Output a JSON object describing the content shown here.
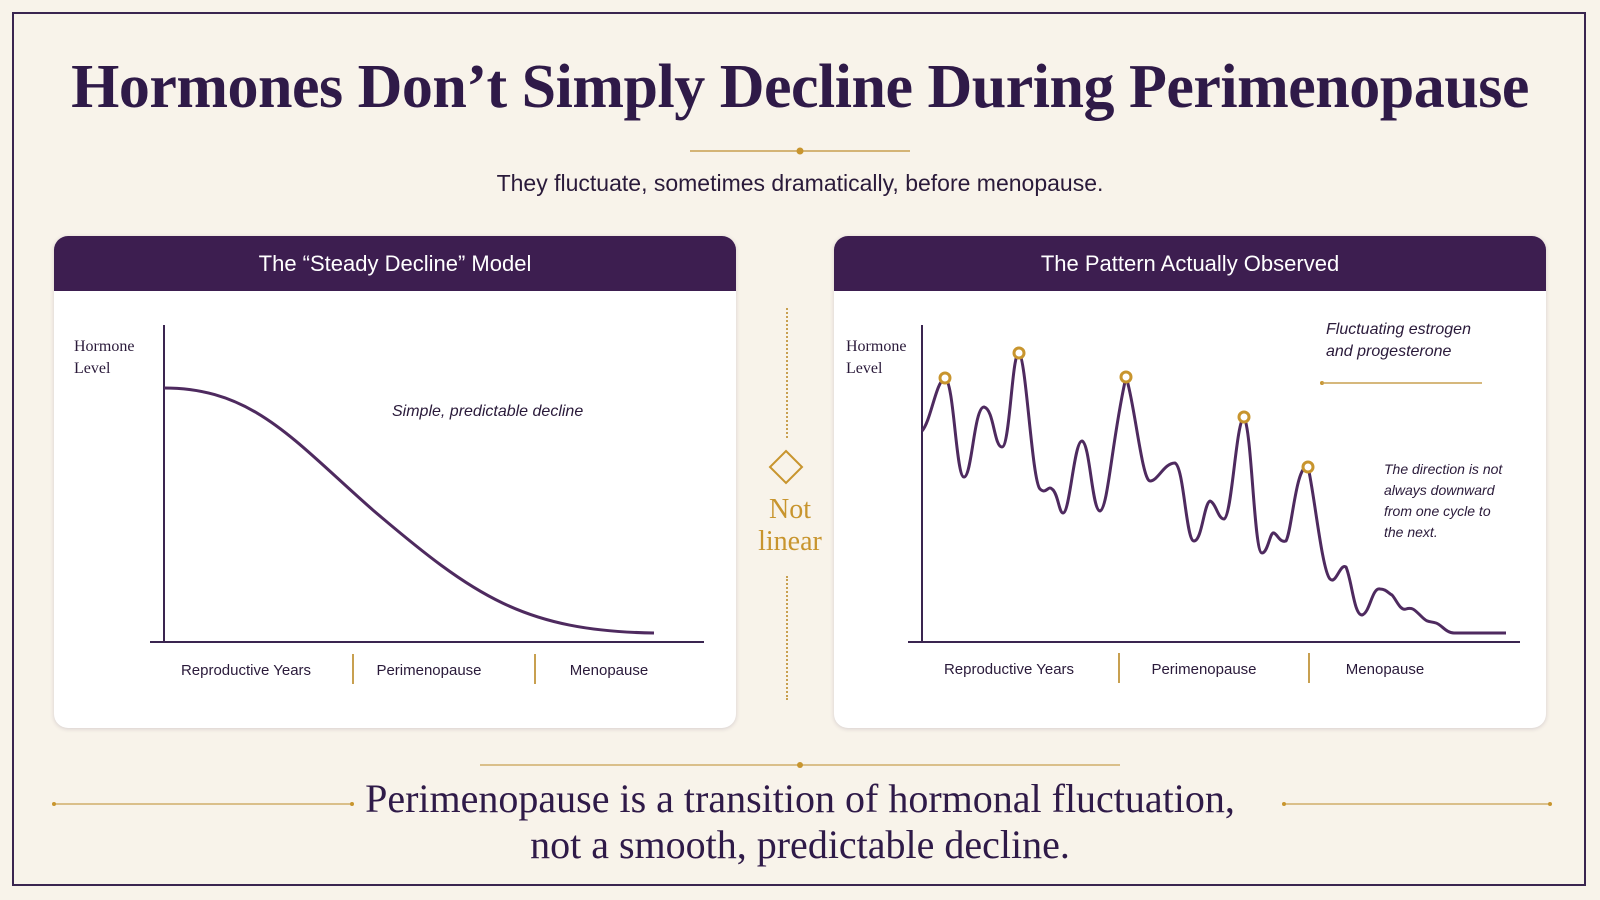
{
  "title": "Hormones Don’t Simply Decline During Perimenopause",
  "subtitle": "They fluctuate, sometimes dramatically, before menopause.",
  "left_panel": {
    "header": "The “Steady Decline” Model",
    "y_label_line1": "Hormone",
    "y_label_line2": "Level",
    "annotation": "Simple, predictable decline",
    "x_labels": [
      "Reproductive Years",
      "Perimenopause",
      "Menopause"
    ]
  },
  "right_panel": {
    "header": "The Pattern Actually Observed",
    "y_label_line1": "Hormone",
    "y_label_line2": "Level",
    "annotation_line1": "Fluctuating estrogen",
    "annotation_line2": "and progesterone",
    "note_lines": [
      "The direction is not",
      "always downward",
      "from one cycle to",
      "the next."
    ],
    "x_labels": [
      "Reproductive Years",
      "Perimenopause",
      "Menopause"
    ]
  },
  "middle": {
    "line1": "Not",
    "line2": "linear",
    "icon": "diamond-icon"
  },
  "bottom": {
    "line1": "Perimenopause is a transition of hormonal fluctuation,",
    "line2": "not a smooth, predictable decline."
  },
  "colors": {
    "purple": "#3d1e50",
    "curve": "#4e2a5f",
    "gold": "#c8952e",
    "background": "#f8f3ea"
  }
}
